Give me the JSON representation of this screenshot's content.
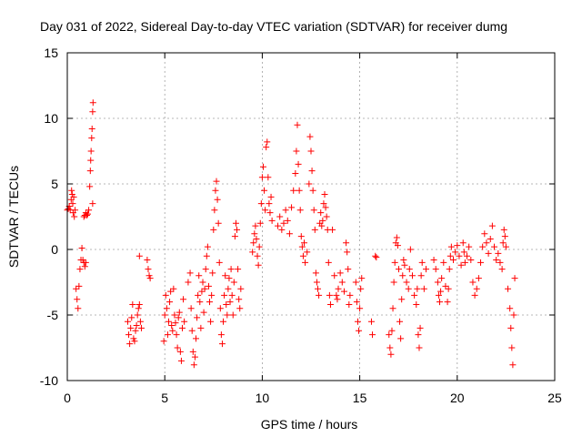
{
  "chart_data": {
    "type": "scatter",
    "title": "Day 031 of 2022, Sidereal Day-to-day VTEC variation (SDTVAR) for receiver dumg",
    "xlabel": "GPS time / hours",
    "ylabel": "SDTVAR / TECUs",
    "xlim": [
      0,
      25
    ],
    "ylim": [
      -10,
      15
    ],
    "xticks": [
      "0",
      "5",
      "10",
      "15",
      "20",
      "25"
    ],
    "yticks": [
      "-10",
      "-5",
      "0",
      "5",
      "10",
      "15"
    ],
    "grid": true,
    "marker": "plus",
    "color": "#ff0000",
    "series": [
      {
        "name": "SDTVAR",
        "points": [
          [
            0.0,
            3.0
          ],
          [
            0.05,
            3.1
          ],
          [
            0.1,
            3.3
          ],
          [
            0.15,
            3.0
          ],
          [
            0.2,
            3.8
          ],
          [
            0.22,
            4.5
          ],
          [
            0.25,
            4.2
          ],
          [
            0.28,
            3.5
          ],
          [
            0.3,
            2.8
          ],
          [
            0.33,
            4.0
          ],
          [
            0.36,
            2.5
          ],
          [
            0.4,
            3.0
          ],
          [
            0.45,
            -3.0
          ],
          [
            0.5,
            -3.8
          ],
          [
            0.55,
            -4.5
          ],
          [
            0.6,
            -2.8
          ],
          [
            0.65,
            -1.5
          ],
          [
            0.7,
            -0.8
          ],
          [
            0.75,
            0.1
          ],
          [
            0.8,
            -0.8
          ],
          [
            0.85,
            -1.0
          ],
          [
            0.9,
            -1.3
          ],
          [
            0.95,
            -1.0
          ],
          [
            0.85,
            2.5
          ],
          [
            0.9,
            2.6
          ],
          [
            0.95,
            2.8
          ],
          [
            1.0,
            2.6
          ],
          [
            1.05,
            2.7
          ],
          [
            1.1,
            3.0
          ],
          [
            1.15,
            4.8
          ],
          [
            1.18,
            6.0
          ],
          [
            1.2,
            6.8
          ],
          [
            1.22,
            7.5
          ],
          [
            1.25,
            8.5
          ],
          [
            1.27,
            9.2
          ],
          [
            1.3,
            10.5
          ],
          [
            1.32,
            11.2
          ],
          [
            1.3,
            3.5
          ],
          [
            3.1,
            -5.5
          ],
          [
            3.15,
            -6.5
          ],
          [
            3.2,
            -7.2
          ],
          [
            3.25,
            -6.0
          ],
          [
            3.3,
            -5.2
          ],
          [
            3.35,
            -4.2
          ],
          [
            3.4,
            -6.8
          ],
          [
            3.45,
            -7.0
          ],
          [
            3.5,
            -6.2
          ],
          [
            3.55,
            -5.8
          ],
          [
            3.6,
            -5.0
          ],
          [
            3.65,
            -4.5
          ],
          [
            3.7,
            -4.2
          ],
          [
            3.75,
            -5.5
          ],
          [
            3.8,
            -6.0
          ],
          [
            3.7,
            -0.5
          ],
          [
            4.1,
            -0.8
          ],
          [
            4.15,
            -1.5
          ],
          [
            4.2,
            -2.0
          ],
          [
            4.25,
            -2.2
          ],
          [
            4.95,
            -7.0
          ],
          [
            5.0,
            -5.0
          ],
          [
            5.05,
            -3.5
          ],
          [
            5.1,
            -4.5
          ],
          [
            5.15,
            -6.5
          ],
          [
            5.2,
            -5.5
          ],
          [
            5.25,
            -4.0
          ],
          [
            5.3,
            -3.2
          ],
          [
            5.35,
            -5.8
          ],
          [
            5.4,
            -6.2
          ],
          [
            5.45,
            -3.0
          ],
          [
            5.5,
            -5.0
          ],
          [
            5.55,
            -5.6
          ],
          [
            5.6,
            -6.5
          ],
          [
            5.65,
            -7.5
          ],
          [
            5.7,
            -5.2
          ],
          [
            5.75,
            -4.8
          ],
          [
            5.8,
            -7.8
          ],
          [
            5.85,
            -8.5
          ],
          [
            5.9,
            -6.0
          ],
          [
            5.95,
            -3.8
          ],
          [
            6.0,
            -5.5
          ],
          [
            6.2,
            -2.5
          ],
          [
            6.3,
            -1.8
          ],
          [
            6.35,
            -4.5
          ],
          [
            6.4,
            -6.2
          ],
          [
            6.45,
            -7.8
          ],
          [
            6.5,
            -8.8
          ],
          [
            6.55,
            -8.2
          ],
          [
            6.6,
            -6.8
          ],
          [
            6.65,
            -5.2
          ],
          [
            6.7,
            -3.5
          ],
          [
            6.75,
            -2.0
          ],
          [
            6.8,
            -4.0
          ],
          [
            6.85,
            -6.0
          ],
          [
            6.9,
            -3.2
          ],
          [
            6.95,
            -2.5
          ],
          [
            7.0,
            -4.8
          ],
          [
            7.05,
            -3.0
          ],
          [
            7.1,
            -1.5
          ],
          [
            7.15,
            -0.5
          ],
          [
            7.2,
            0.2
          ],
          [
            7.25,
            -2.8
          ],
          [
            7.3,
            -4.0
          ],
          [
            7.35,
            -5.5
          ],
          [
            7.4,
            -3.5
          ],
          [
            7.45,
            -1.8
          ],
          [
            7.5,
            1.5
          ],
          [
            7.55,
            3.0
          ],
          [
            7.6,
            4.5
          ],
          [
            7.65,
            5.2
          ],
          [
            7.7,
            3.8
          ],
          [
            7.75,
            2.0
          ],
          [
            7.8,
            -1.0
          ],
          [
            7.85,
            -4.5
          ],
          [
            7.9,
            -6.5
          ],
          [
            7.95,
            -7.2
          ],
          [
            8.0,
            -5.5
          ],
          [
            8.05,
            -3.5
          ],
          [
            8.1,
            -2.0
          ],
          [
            8.15,
            -4.2
          ],
          [
            8.2,
            -5.0
          ],
          [
            8.25,
            -3.0
          ],
          [
            8.3,
            -2.2
          ],
          [
            8.35,
            -4.0
          ],
          [
            8.4,
            -1.5
          ],
          [
            8.45,
            -3.5
          ],
          [
            8.5,
            -5.0
          ],
          [
            8.55,
            -2.5
          ],
          [
            8.6,
            1.0
          ],
          [
            8.65,
            2.0
          ],
          [
            8.7,
            1.5
          ],
          [
            8.75,
            -1.5
          ],
          [
            8.8,
            -3.8
          ],
          [
            8.85,
            -4.5
          ],
          [
            8.9,
            -3.0
          ],
          [
            9.5,
            -0.2
          ],
          [
            9.55,
            0.5
          ],
          [
            9.6,
            1.2
          ],
          [
            9.65,
            1.8
          ],
          [
            9.7,
            0.8
          ],
          [
            9.75,
            -0.5
          ],
          [
            9.8,
            -1.2
          ],
          [
            9.85,
            0.2
          ],
          [
            9.9,
            2.0
          ],
          [
            9.95,
            3.5
          ],
          [
            10.0,
            5.5
          ],
          [
            10.05,
            6.3
          ],
          [
            10.1,
            4.5
          ],
          [
            10.15,
            3.0
          ],
          [
            10.2,
            7.8
          ],
          [
            10.25,
            8.2
          ],
          [
            10.3,
            5.5
          ],
          [
            10.35,
            3.5
          ],
          [
            10.4,
            2.8
          ],
          [
            10.45,
            4.0
          ],
          [
            10.5,
            2.2
          ],
          [
            10.8,
            1.8
          ],
          [
            10.9,
            2.5
          ],
          [
            11.0,
            1.5
          ],
          [
            11.1,
            2.0
          ],
          [
            11.2,
            3.0
          ],
          [
            11.3,
            2.2
          ],
          [
            11.4,
            1.2
          ],
          [
            11.5,
            3.2
          ],
          [
            11.6,
            4.5
          ],
          [
            11.7,
            5.8
          ],
          [
            11.75,
            7.5
          ],
          [
            11.8,
            9.5
          ],
          [
            11.85,
            6.5
          ],
          [
            11.9,
            4.5
          ],
          [
            11.95,
            3.0
          ],
          [
            12.0,
            1.0
          ],
          [
            12.05,
            0.2
          ],
          [
            12.1,
            -0.5
          ],
          [
            12.15,
            0.5
          ],
          [
            12.2,
            -1.0
          ],
          [
            12.3,
            -0.2
          ],
          [
            12.4,
            5.0
          ],
          [
            12.45,
            8.6
          ],
          [
            12.5,
            7.5
          ],
          [
            12.55,
            6.0
          ],
          [
            12.6,
            4.5
          ],
          [
            12.65,
            3.0
          ],
          [
            12.7,
            1.5
          ],
          [
            12.75,
            -1.8
          ],
          [
            12.8,
            -2.5
          ],
          [
            12.85,
            -3.0
          ],
          [
            12.9,
            -3.5
          ],
          [
            12.95,
            2.0
          ],
          [
            13.0,
            2.8
          ],
          [
            13.05,
            1.8
          ],
          [
            13.1,
            2.2
          ],
          [
            13.15,
            3.5
          ],
          [
            13.2,
            4.2
          ],
          [
            13.25,
            3.2
          ],
          [
            13.3,
            2.5
          ],
          [
            13.35,
            1.5
          ],
          [
            13.4,
            -1.0
          ],
          [
            13.45,
            -3.5
          ],
          [
            13.5,
            -4.2
          ],
          [
            13.6,
            1.5
          ],
          [
            13.7,
            -2.0
          ],
          [
            13.8,
            -3.5
          ],
          [
            13.85,
            -3.8
          ],
          [
            13.9,
            -3.0
          ],
          [
            14.0,
            -1.8
          ],
          [
            14.1,
            -2.5
          ],
          [
            14.2,
            -3.2
          ],
          [
            14.3,
            0.5
          ],
          [
            14.35,
            -0.2
          ],
          [
            14.4,
            -1.5
          ],
          [
            14.45,
            -4.2
          ],
          [
            14.5,
            -3.5
          ],
          [
            14.8,
            -2.5
          ],
          [
            14.85,
            -4.0
          ],
          [
            14.9,
            -5.5
          ],
          [
            14.95,
            -6.2
          ],
          [
            15.0,
            -4.5
          ],
          [
            15.05,
            -3.0
          ],
          [
            15.1,
            -2.2
          ],
          [
            15.6,
            -5.5
          ],
          [
            15.65,
            -6.5
          ],
          [
            15.8,
            -0.5
          ],
          [
            15.85,
            -0.6
          ],
          [
            16.5,
            -6.5
          ],
          [
            16.55,
            -7.5
          ],
          [
            16.6,
            -8.0
          ],
          [
            16.65,
            -6.2
          ],
          [
            16.7,
            -4.5
          ],
          [
            16.75,
            -2.5
          ],
          [
            16.8,
            -1.0
          ],
          [
            16.85,
            0.5
          ],
          [
            16.9,
            0.9
          ],
          [
            16.95,
            0.3
          ],
          [
            17.0,
            -1.5
          ],
          [
            17.05,
            -5.5
          ],
          [
            17.1,
            -6.8
          ],
          [
            17.15,
            -3.8
          ],
          [
            17.2,
            -2.0
          ],
          [
            17.25,
            -0.8
          ],
          [
            17.3,
            -1.2
          ],
          [
            17.4,
            -2.5
          ],
          [
            17.5,
            -3.0
          ],
          [
            17.55,
            -1.5
          ],
          [
            17.6,
            0.0
          ],
          [
            17.7,
            -2.0
          ],
          [
            17.8,
            -3.5
          ],
          [
            17.9,
            -4.2
          ],
          [
            17.95,
            -3.0
          ],
          [
            18.0,
            -6.5
          ],
          [
            18.05,
            -7.5
          ],
          [
            18.1,
            -6.0
          ],
          [
            18.15,
            -2.0
          ],
          [
            18.2,
            -1.0
          ],
          [
            18.3,
            -3.0
          ],
          [
            18.4,
            -1.5
          ],
          [
            18.8,
            -0.8
          ],
          [
            18.9,
            -1.5
          ],
          [
            19.0,
            -2.5
          ],
          [
            19.05,
            -3.5
          ],
          [
            19.1,
            -4.0
          ],
          [
            19.15,
            -3.2
          ],
          [
            19.2,
            -2.2
          ],
          [
            19.3,
            -1.0
          ],
          [
            19.4,
            -2.8
          ],
          [
            19.5,
            -4.0
          ],
          [
            19.55,
            -3.0
          ],
          [
            19.6,
            -1.5
          ],
          [
            19.65,
            -0.5
          ],
          [
            19.7,
            0.2
          ],
          [
            19.8,
            -0.8
          ],
          [
            19.9,
            -0.2
          ],
          [
            20.0,
            0.3
          ],
          [
            20.1,
            -0.5
          ],
          [
            20.2,
            -1.2
          ],
          [
            20.3,
            0.5
          ],
          [
            20.35,
            -0.2
          ],
          [
            20.4,
            -1.0
          ],
          [
            20.5,
            -0.5
          ],
          [
            20.6,
            0.2
          ],
          [
            20.7,
            -0.8
          ],
          [
            20.8,
            -2.5
          ],
          [
            20.9,
            -3.5
          ],
          [
            21.0,
            -3.0
          ],
          [
            21.1,
            -2.2
          ],
          [
            21.2,
            -1.0
          ],
          [
            21.3,
            0.2
          ],
          [
            21.4,
            1.2
          ],
          [
            21.5,
            0.5
          ],
          [
            21.6,
            -0.3
          ],
          [
            21.7,
            0.8
          ],
          [
            21.8,
            1.8
          ],
          [
            21.9,
            0.2
          ],
          [
            22.0,
            -0.8
          ],
          [
            22.1,
            -0.3
          ],
          [
            22.2,
            -1.0
          ],
          [
            22.3,
            -1.5
          ],
          [
            22.35,
            0.5
          ],
          [
            22.4,
            1.5
          ],
          [
            22.45,
            1.0
          ],
          [
            22.5,
            0.2
          ],
          [
            22.6,
            -3.0
          ],
          [
            22.7,
            -4.5
          ],
          [
            22.75,
            -6.0
          ],
          [
            22.8,
            -7.5
          ],
          [
            22.85,
            -8.8
          ],
          [
            22.9,
            -5.0
          ],
          [
            22.95,
            -2.2
          ]
        ]
      }
    ]
  }
}
